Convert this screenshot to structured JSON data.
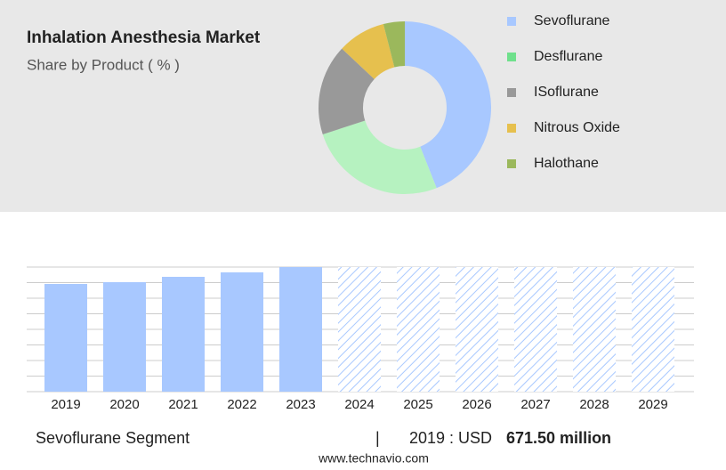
{
  "chart_data": [
    {
      "type": "pie",
      "title": "Inhalation Anesthesia Market",
      "subtitle": "Share by Product ( % )",
      "categories": [
        "Sevoflurane",
        "Desflurane",
        "ISoflurane",
        "Nitrous Oxide",
        "Halothane"
      ],
      "values": [
        44,
        26,
        17,
        9,
        4
      ],
      "colors": [
        "#a8c8ff",
        "#b6f2c0",
        "#999999",
        "#e6c04e",
        "#9bb85c"
      ],
      "legend_colors": [
        "#a8c8ff",
        "#6fe08c",
        "#999999",
        "#e6c04e",
        "#9bb85c"
      ]
    },
    {
      "type": "bar",
      "categories": [
        "2019",
        "2020",
        "2021",
        "2022",
        "2023",
        "2024",
        "2025",
        "2026",
        "2027",
        "2028",
        "2029"
      ],
      "values": [
        671.5,
        683,
        716,
        744,
        777,
        null,
        null,
        null,
        null,
        null,
        null
      ],
      "value_labels": [
        "671.50 million",
        null,
        null,
        null,
        null,
        null,
        null,
        null,
        null,
        null,
        null
      ],
      "color": "#a8c8ff",
      "ylim": [
        0,
        777
      ]
    }
  ],
  "footer": {
    "segment": "Sevoflurane Segment",
    "separator": "|",
    "prefix": "2019 : USD",
    "source": "www.technavio.com"
  }
}
